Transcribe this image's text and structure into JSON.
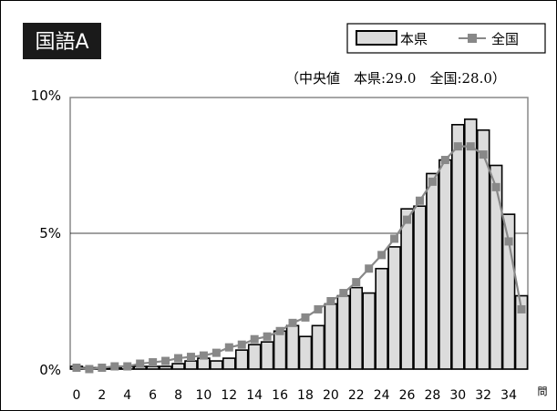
{
  "title": "国語A",
  "subtitle": "（中央値　本県:29.0　全国:28.0）",
  "chart_data": {
    "type": "bar",
    "x_unit": "問",
    "y_ticks": [
      "0%",
      "5%",
      "10%"
    ],
    "ylim": [
      0,
      10
    ],
    "xlim": [
      0,
      35
    ],
    "x_tick_labels": [
      "0",
      "2",
      "4",
      "6",
      "8",
      "10",
      "12",
      "14",
      "16",
      "18",
      "20",
      "22",
      "24",
      "26",
      "28",
      "30",
      "32",
      "34"
    ],
    "legend": {
      "placement": "top-right"
    },
    "categories": [
      0,
      1,
      2,
      3,
      4,
      5,
      6,
      7,
      8,
      9,
      10,
      11,
      12,
      13,
      14,
      15,
      16,
      17,
      18,
      19,
      20,
      21,
      22,
      23,
      24,
      25,
      26,
      27,
      28,
      29,
      30,
      31,
      32,
      33,
      34,
      35
    ],
    "series": [
      {
        "name": "本県",
        "kind": "bar",
        "color": "#dcdcdc",
        "values": [
          0.1,
          0.05,
          0.05,
          0.05,
          0.1,
          0.1,
          0.1,
          0.1,
          0.2,
          0.3,
          0.4,
          0.3,
          0.4,
          0.7,
          0.9,
          1.0,
          1.4,
          1.6,
          1.2,
          1.6,
          2.4,
          2.7,
          3.0,
          2.8,
          3.7,
          4.5,
          5.9,
          6.0,
          7.2,
          7.7,
          9.0,
          9.2,
          8.8,
          7.5,
          5.7,
          2.7
        ]
      },
      {
        "name": "全国",
        "kind": "line",
        "color": "#888888",
        "values": [
          0.05,
          0.0,
          0.05,
          0.1,
          0.1,
          0.2,
          0.25,
          0.3,
          0.4,
          0.45,
          0.5,
          0.6,
          0.8,
          0.9,
          1.1,
          1.2,
          1.4,
          1.7,
          1.9,
          2.2,
          2.5,
          2.8,
          3.2,
          3.7,
          4.2,
          4.8,
          5.5,
          6.2,
          6.9,
          7.7,
          8.2,
          8.2,
          7.9,
          6.7,
          4.7,
          2.2
        ]
      }
    ]
  }
}
